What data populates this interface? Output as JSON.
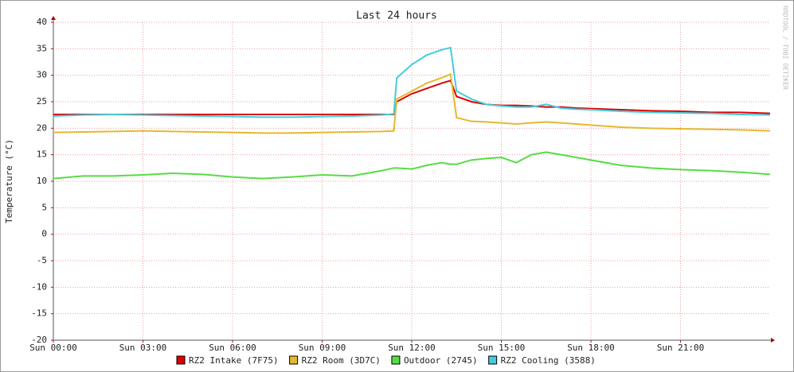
{
  "chart_data": {
    "type": "line",
    "title": "Last 24 hours",
    "y_label": "Temperature (°C)",
    "side_label": "RRDTOOL / TOBI OETIKER",
    "x": [
      0,
      1,
      2,
      3,
      4,
      5,
      6,
      7,
      8,
      9,
      10,
      11,
      11.4,
      11.5,
      12,
      12.5,
      13,
      13.3,
      13.5,
      14,
      14.5,
      15,
      15.5,
      16,
      16.5,
      17,
      17.5,
      18,
      19,
      20,
      21,
      22,
      23,
      24
    ],
    "xlim": [
      0,
      24
    ],
    "xticks": [
      {
        "value": 0,
        "label": "Sun 00:00"
      },
      {
        "value": 3,
        "label": "Sun 03:00"
      },
      {
        "value": 6,
        "label": "Sun 06:00"
      },
      {
        "value": 9,
        "label": "Sun 09:00"
      },
      {
        "value": 12,
        "label": "Sun 12:00"
      },
      {
        "value": 15,
        "label": "Sun 15:00"
      },
      {
        "value": 18,
        "label": "Sun 18:00"
      },
      {
        "value": 21,
        "label": "Sun 21:00"
      }
    ],
    "ylim": [
      -20,
      40
    ],
    "yticks": [
      -20,
      -15,
      -10,
      -5,
      0,
      5,
      10,
      15,
      20,
      25,
      30,
      35,
      40
    ],
    "grid": true,
    "series": [
      {
        "name": "RZ2 Intake (7F75)",
        "color": "#dd0000",
        "values": [
          22.6,
          22.6,
          22.6,
          22.6,
          22.6,
          22.6,
          22.6,
          22.6,
          22.6,
          22.6,
          22.6,
          22.6,
          22.6,
          25,
          26.5,
          27.5,
          28.5,
          29,
          26,
          25,
          24.5,
          24.3,
          24.3,
          24.2,
          24,
          24,
          23.8,
          23.7,
          23.5,
          23.3,
          23.2,
          23,
          23,
          22.8
        ]
      },
      {
        "name": "RZ2 Room (3D7C)",
        "color": "#e6b82e",
        "values": [
          19.2,
          19.3,
          19.4,
          19.5,
          19.4,
          19.3,
          19.2,
          19.1,
          19.1,
          19.2,
          19.3,
          19.4,
          19.5,
          25.5,
          27,
          28.5,
          29.5,
          30.2,
          22,
          21.3,
          21.2,
          21,
          20.8,
          21,
          21.2,
          21,
          20.8,
          20.6,
          20.2,
          20,
          19.9,
          19.8,
          19.7,
          19.5
        ]
      },
      {
        "name": "Outdoor (2745)",
        "color": "#55dd44",
        "values": [
          10.5,
          11,
          11,
          11.2,
          11.5,
          11.3,
          10.8,
          10.5,
          10.8,
          11.2,
          11,
          12,
          12.5,
          12.5,
          12.3,
          13,
          13.5,
          13.2,
          13.2,
          14,
          14.3,
          14.5,
          13.5,
          15,
          15.5,
          15,
          14.5,
          14,
          13,
          12.5,
          12.2,
          12,
          11.7,
          11.3
        ]
      },
      {
        "name": "RZ2 Cooling (3588)",
        "color": "#44ccdd",
        "values": [
          22.3,
          22.5,
          22.6,
          22.5,
          22.4,
          22.3,
          22.2,
          22.1,
          22.1,
          22.2,
          22.3,
          22.5,
          22.7,
          29.5,
          32,
          33.8,
          34.8,
          35.2,
          27,
          25.5,
          24.5,
          24.2,
          24,
          24,
          24.5,
          23.8,
          23.6,
          23.5,
          23.2,
          23,
          22.9,
          22.8,
          22.6,
          22.5
        ]
      }
    ]
  }
}
